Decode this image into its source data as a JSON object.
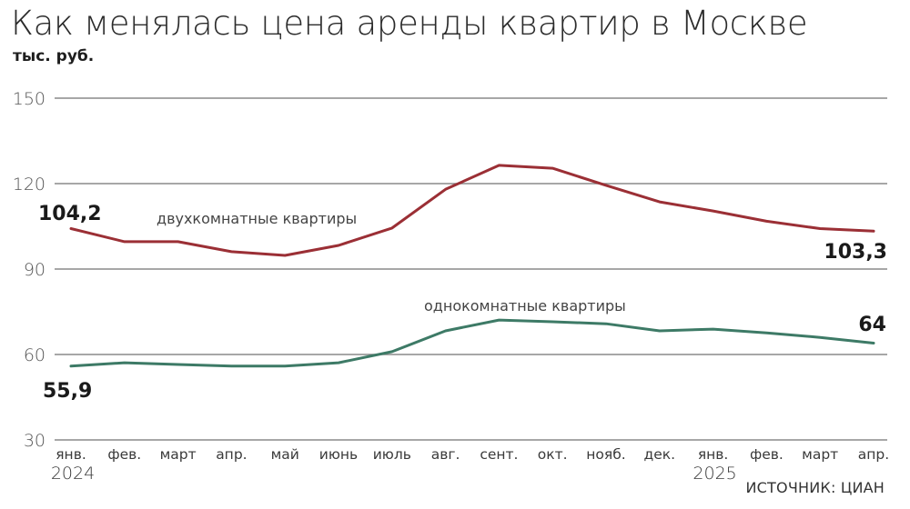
{
  "title": "Как менялась цена аренды квартир в Москве",
  "unit_label": "тыс. руб.",
  "source": "ИСТОЧНИК: ЦИАН",
  "colors": {
    "two_room": "#9b2f35",
    "one_room": "#3d7a66",
    "grid": "#8a8a8a",
    "axis_text": "#555555"
  },
  "chart_data": {
    "type": "line",
    "title": "Как менялась цена аренды квартир в Москве",
    "ylabel": "тыс. руб.",
    "xlabel": "",
    "ylim": [
      30,
      150
    ],
    "yticks": [
      30,
      60,
      90,
      120,
      150
    ],
    "grid": true,
    "categories": [
      "янв.",
      "фев.",
      "март",
      "апр.",
      "май",
      "июнь",
      "июль",
      "авг.",
      "сент.",
      "окт.",
      "нояб.",
      "дек.",
      "янв.",
      "фев.",
      "март",
      "апр."
    ],
    "year_labels": [
      {
        "index": 0,
        "label": "2024"
      },
      {
        "index": 12,
        "label": "2025"
      }
    ],
    "series": [
      {
        "name": "двухкомнатные квартиры",
        "color": "#9b2f35",
        "values": [
          104.2,
          99.6,
          99.6,
          96.1,
          94.8,
          98.3,
          104.4,
          118.0,
          126.4,
          125.4,
          119.4,
          113.6,
          110.4,
          106.8,
          104.2,
          103.3
        ],
        "start_label": "104,2",
        "end_label": "103,3"
      },
      {
        "name": "однокомнатные квартиры",
        "color": "#3d7a66",
        "values": [
          55.9,
          57.1,
          56.5,
          55.9,
          55.9,
          57.1,
          61.0,
          68.3,
          72.1,
          71.5,
          70.8,
          68.3,
          68.9,
          67.6,
          66.0,
          64.0
        ],
        "start_label": "55,9",
        "end_label": "64"
      }
    ],
    "legend_position": "inline labels"
  },
  "source_text": "ИСТОЧНИК: ЦИАН"
}
